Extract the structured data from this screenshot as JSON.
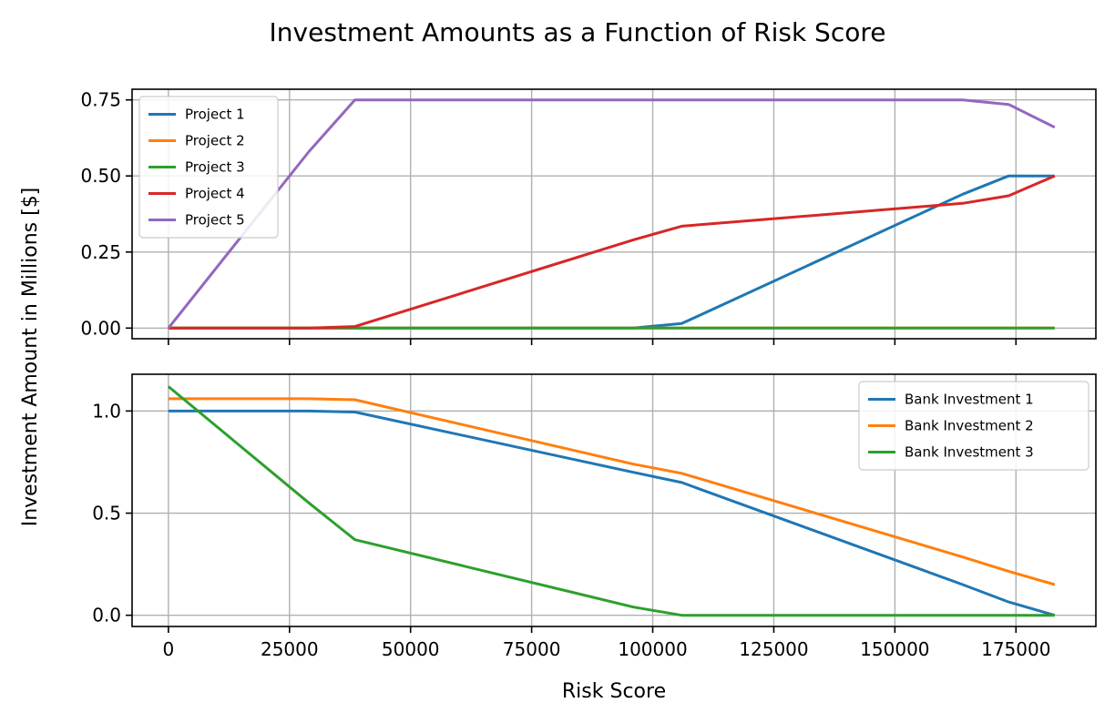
{
  "title": "Investment Amounts as a Function of Risk Score",
  "ylabel": "Investment Amount in Millions [$]",
  "xlabel": "Risk Score",
  "chart_data": [
    {
      "type": "line",
      "xlim": [
        -7500,
        191500
      ],
      "ylim": [
        -0.035,
        0.785
      ],
      "xticks": [
        0,
        25000,
        50000,
        75000,
        100000,
        125000,
        150000,
        175000
      ],
      "yticks": [
        0.0,
        0.25,
        0.5,
        0.75
      ],
      "ytick_labels": [
        "0.00",
        "0.25",
        "0.50",
        "0.75"
      ],
      "show_xtick_labels": false,
      "grid": true,
      "legend_position": "top-left",
      "series": [
        {
          "name": "Project 1",
          "color": "#1f77b4",
          "x": [
            0,
            29000,
            38500,
            96000,
            106000,
            164000,
            173500,
            183000
          ],
          "y": [
            0,
            0,
            0,
            0,
            0.015,
            0.44,
            0.5,
            0.5
          ]
        },
        {
          "name": "Project 2",
          "color": "#ff7f0e",
          "x": [
            0,
            29000,
            38500,
            96000,
            106000,
            164000,
            173500,
            183000
          ],
          "y": [
            0,
            0,
            0,
            0,
            0,
            0,
            0,
            0
          ]
        },
        {
          "name": "Project 3",
          "color": "#2ca02c",
          "x": [
            0,
            29000,
            38500,
            96000,
            106000,
            164000,
            173500,
            183000
          ],
          "y": [
            0,
            0,
            0,
            0,
            0,
            0,
            0,
            0
          ]
        },
        {
          "name": "Project 4",
          "color": "#d62728",
          "x": [
            0,
            29000,
            38500,
            96000,
            106000,
            164000,
            173500,
            183000
          ],
          "y": [
            0,
            0,
            0.005,
            0.29,
            0.335,
            0.41,
            0.435,
            0.5
          ]
        },
        {
          "name": "Project 5",
          "color": "#9467bd",
          "x": [
            0,
            29000,
            38500,
            96000,
            106000,
            164000,
            173500,
            183000
          ],
          "y": [
            0,
            0.58,
            0.75,
            0.75,
            0.75,
            0.75,
            0.735,
            0.66
          ]
        }
      ]
    },
    {
      "type": "line",
      "xlim": [
        -7500,
        191500
      ],
      "ylim": [
        -0.055,
        1.18
      ],
      "xticks": [
        0,
        25000,
        50000,
        75000,
        100000,
        125000,
        150000,
        175000
      ],
      "xtick_labels": [
        "0",
        "25000",
        "50000",
        "75000",
        "100000",
        "125000",
        "150000",
        "175000"
      ],
      "yticks": [
        0.0,
        0.5,
        1.0
      ],
      "ytick_labels": [
        "0.0",
        "0.5",
        "1.0"
      ],
      "show_xtick_labels": true,
      "grid": true,
      "legend_position": "top-right",
      "series": [
        {
          "name": "Bank Investment 1",
          "color": "#1f77b4",
          "x": [
            0,
            29000,
            38500,
            96000,
            106000,
            164000,
            173500,
            183000
          ],
          "y": [
            1.0,
            1.0,
            0.995,
            0.7,
            0.65,
            0.15,
            0.065,
            0.0
          ]
        },
        {
          "name": "Bank Investment 2",
          "color": "#ff7f0e",
          "x": [
            0,
            29000,
            38500,
            96000,
            106000,
            164000,
            173500,
            183000
          ],
          "y": [
            1.06,
            1.06,
            1.055,
            0.74,
            0.695,
            0.285,
            0.215,
            0.15
          ]
        },
        {
          "name": "Bank Investment 3",
          "color": "#2ca02c",
          "x": [
            0,
            29000,
            38500,
            96000,
            106000,
            164000,
            173500,
            183000
          ],
          "y": [
            1.12,
            0.55,
            0.37,
            0.04,
            0.0,
            0.0,
            0.0,
            0.0
          ]
        }
      ]
    }
  ]
}
